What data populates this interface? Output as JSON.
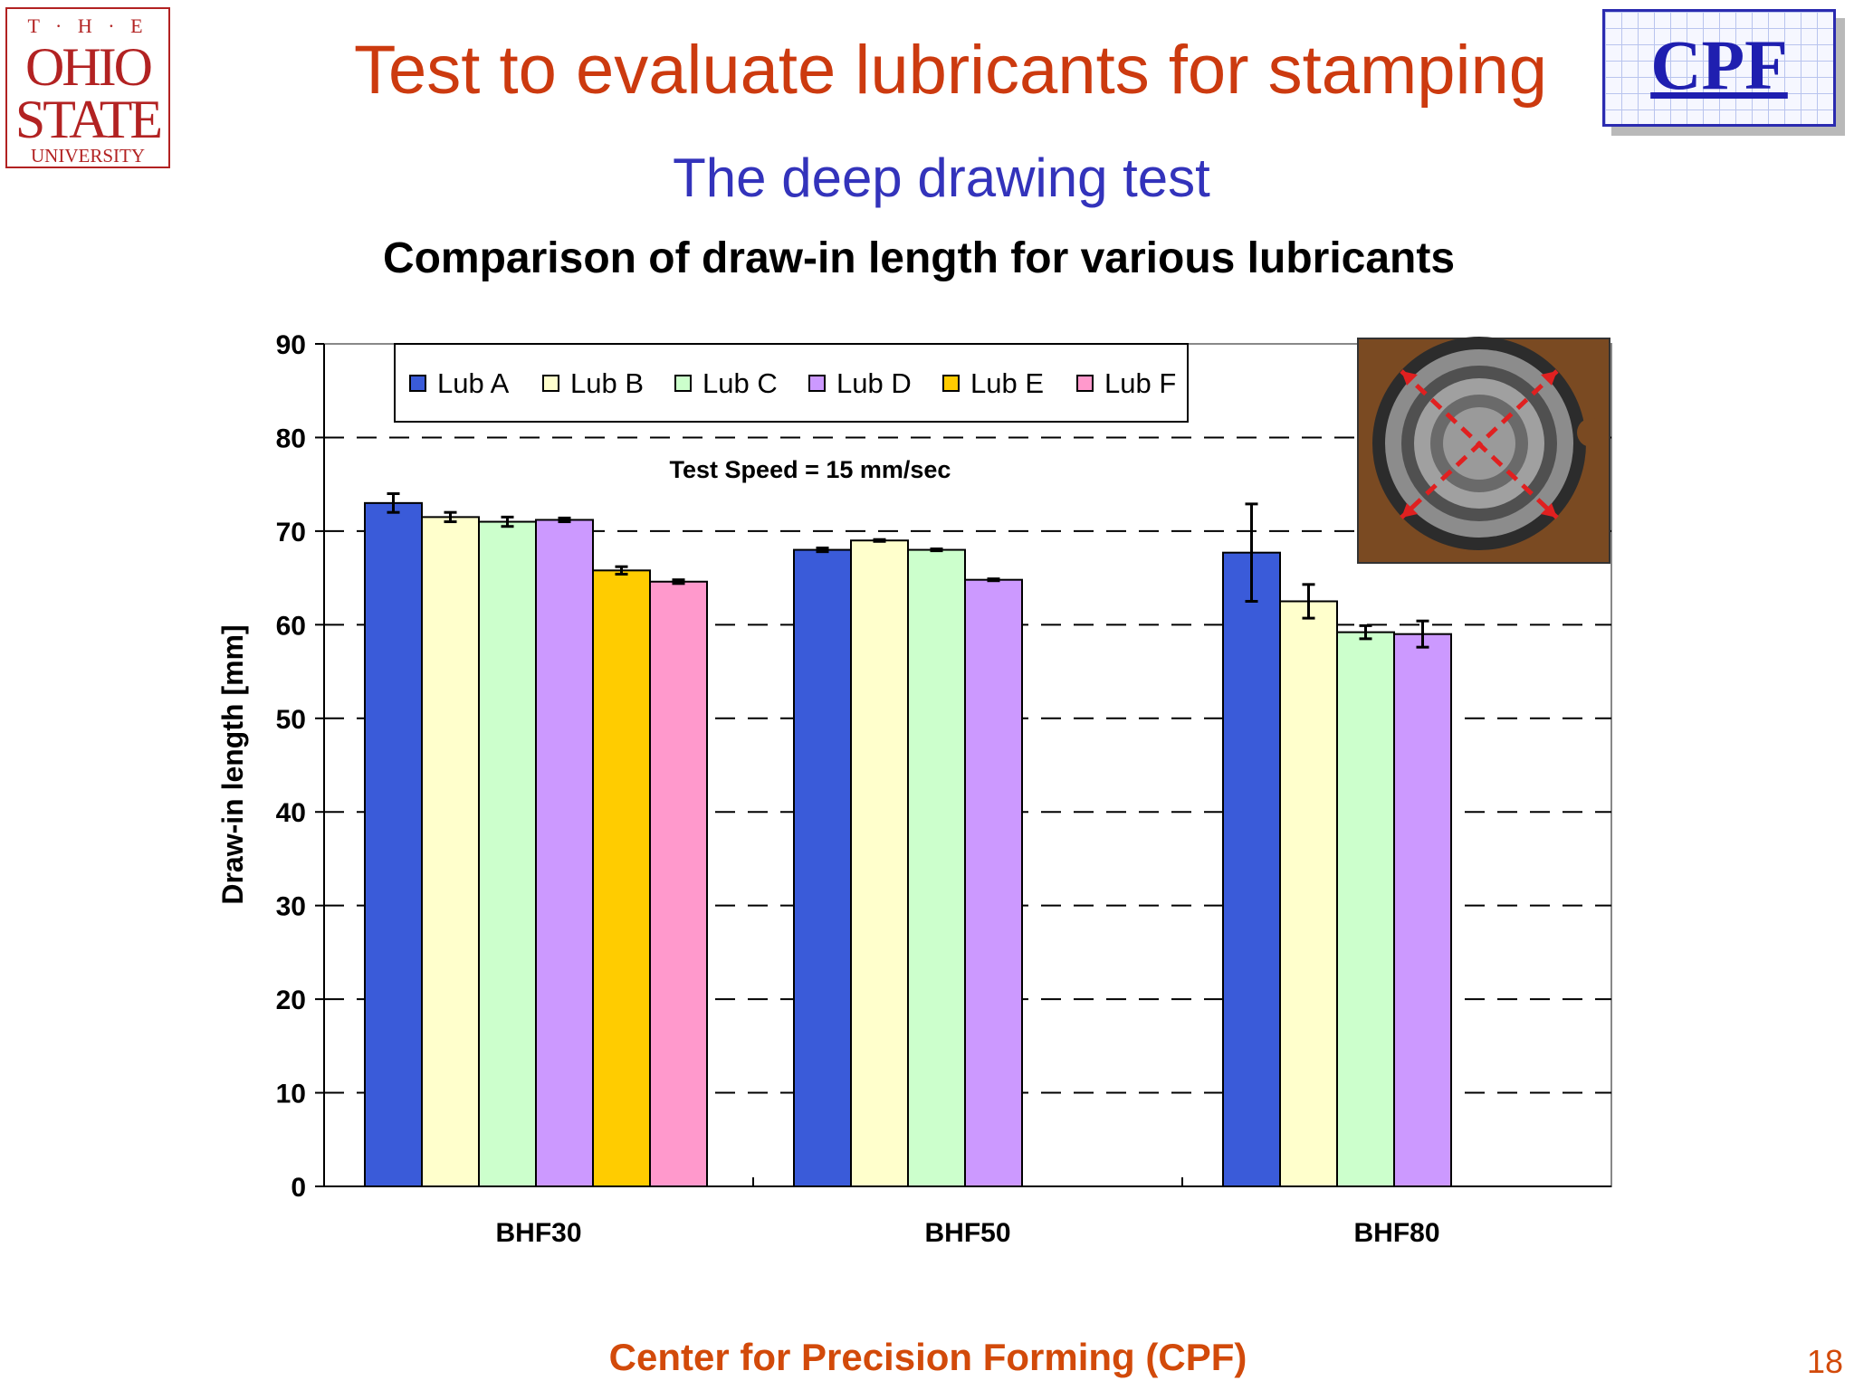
{
  "logos": {
    "osu": {
      "the": "T · H · E",
      "line1": "OHIO",
      "line2": "STATE",
      "line3": "UNIVERSITY"
    },
    "cpf": {
      "text": "CPF"
    }
  },
  "slide": {
    "title": "Test to evaluate lubricants for stamping",
    "subtitle": "The deep drawing test",
    "chart_heading": "Comparison of draw-in length for various lubricants",
    "footer": "Center for Precision Forming (CPF)",
    "page_number": "18"
  },
  "chart_data": {
    "type": "bar",
    "title": "Comparison of draw-in length for various lubricants",
    "ylabel": "Draw-in length [mm]",
    "xlabel": "",
    "ylim": [
      0,
      90
    ],
    "yticks": [
      0,
      10,
      20,
      30,
      40,
      50,
      60,
      70,
      80,
      90
    ],
    "grid": "dashed horizontal",
    "legend_position": "top-left",
    "annotation": "Test Speed = 15 mm/sec",
    "inset": "photo of deep drawn cup with red dashed arrows",
    "categories": [
      "BHF30",
      "BHF50",
      "BHF80"
    ],
    "series": [
      {
        "name": "Lub A",
        "color": "#3a5bd9",
        "values": [
          73,
          68,
          67.7
        ],
        "errors": [
          1.0,
          0.2,
          5.2
        ]
      },
      {
        "name": "Lub B",
        "color": "#ffffcc",
        "values": [
          71.5,
          69,
          62.5
        ],
        "errors": [
          0.5,
          0.1,
          1.8
        ]
      },
      {
        "name": "Lub C",
        "color": "#ccffcc",
        "values": [
          71,
          68,
          59.2
        ],
        "errors": [
          0.5,
          0.1,
          0.7
        ]
      },
      {
        "name": "Lub D",
        "color": "#cc99ff",
        "values": [
          71.2,
          64.8,
          59
        ],
        "errors": [
          0.2,
          0.1,
          1.4
        ]
      },
      {
        "name": "Lub E",
        "color": "#ffcc00",
        "values": [
          65.8,
          null,
          null
        ],
        "errors": [
          0.4,
          null,
          null
        ]
      },
      {
        "name": "Lub F",
        "color": "#ff99cc",
        "values": [
          64.6,
          null,
          null
        ],
        "errors": [
          0.2,
          null,
          null
        ]
      }
    ]
  }
}
